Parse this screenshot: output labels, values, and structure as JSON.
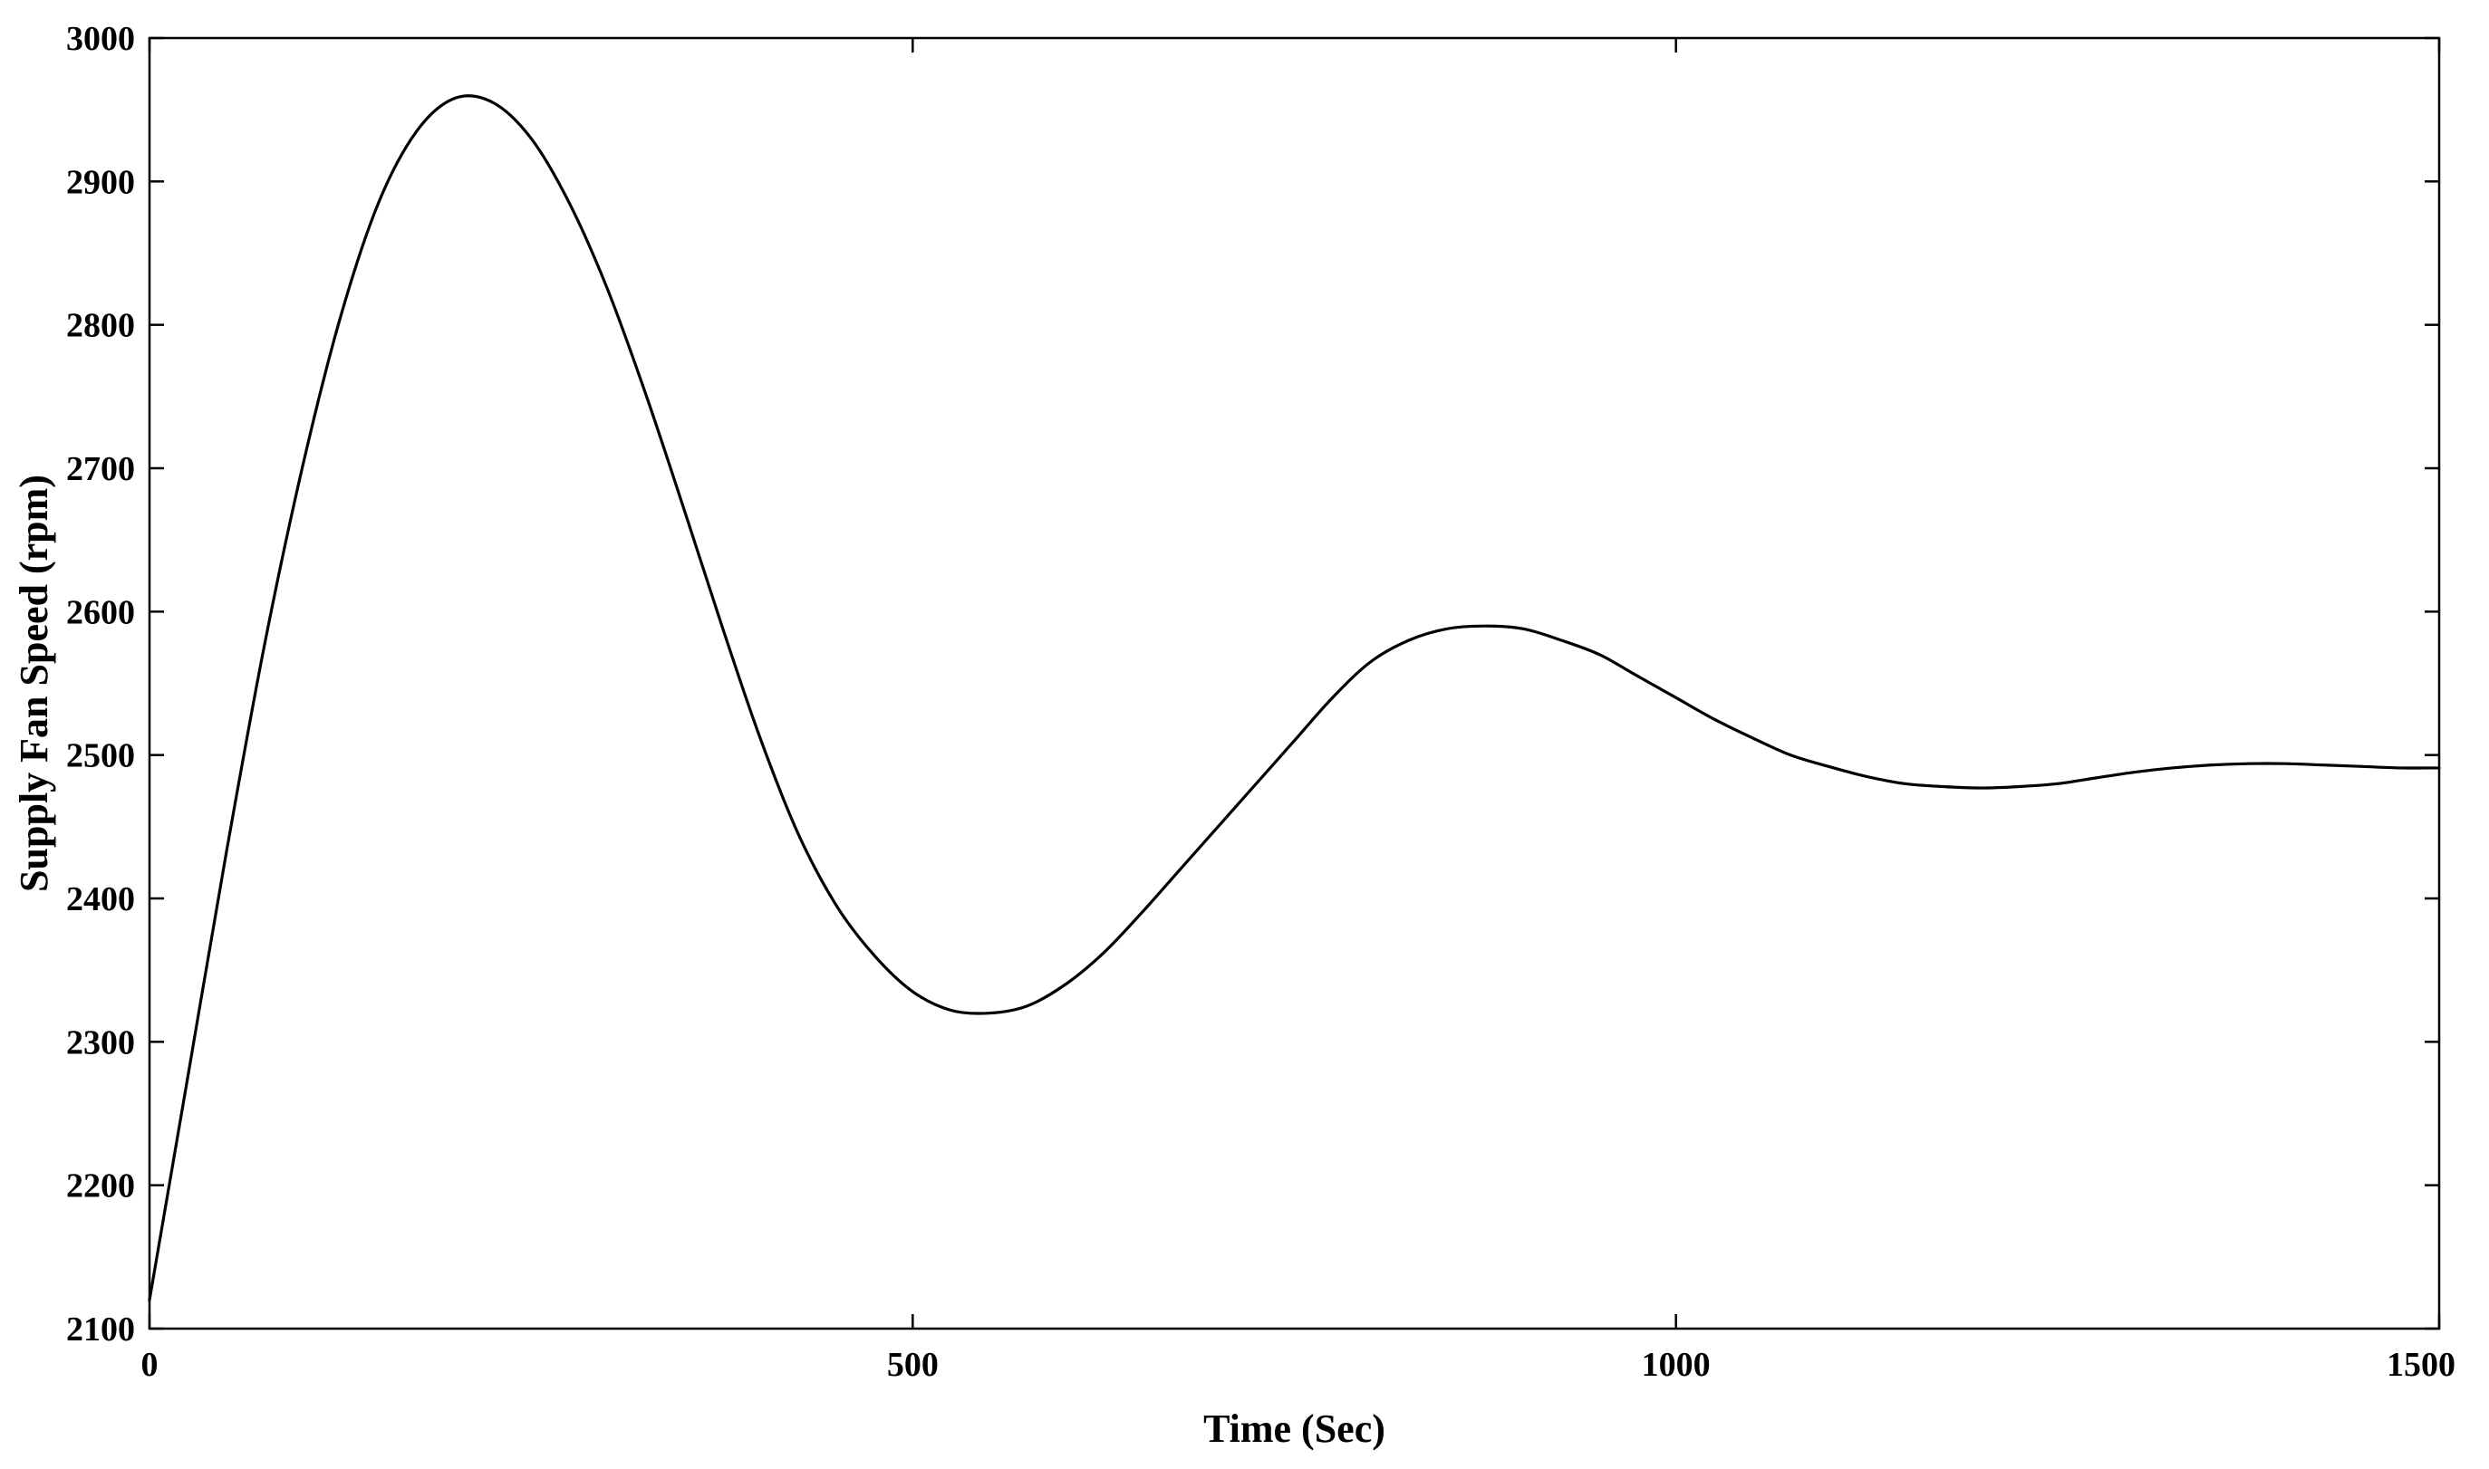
{
  "chart_data": {
    "type": "line",
    "title": "",
    "xlabel": "Time (Sec)",
    "ylabel": "Supply Fan Speed (rpm)",
    "xlim": [
      0,
      1500
    ],
    "ylim": [
      2100,
      3000
    ],
    "xticks": [
      0,
      500,
      1000,
      1500
    ],
    "yticks": [
      2100,
      2200,
      2300,
      2400,
      2500,
      2600,
      2700,
      2800,
      2900,
      3000
    ],
    "xtick_labels": [
      "0",
      "500",
      "1000",
      "1500"
    ],
    "ytick_labels": [
      "2100",
      "2200",
      "2300",
      "2400",
      "2500",
      "2600",
      "2700",
      "2800",
      "2900",
      "3000"
    ],
    "grid": false,
    "line_color": "#000000",
    "series": [
      {
        "x": [
          0,
          25,
          50,
          75,
          100,
          125,
          150,
          175,
          200,
          225,
          250,
          275,
          300,
          325,
          350,
          375,
          400,
          425,
          450,
          475,
          500,
          525,
          550,
          575,
          600,
          625,
          650,
          675,
          700,
          725,
          750,
          775,
          800,
          825,
          850,
          875,
          900,
          925,
          950,
          975,
          1000,
          1025,
          1050,
          1075,
          1100,
          1125,
          1150,
          1175,
          1200,
          1225,
          1250,
          1275,
          1300,
          1325,
          1350,
          1375,
          1400,
          1425,
          1450,
          1475,
          1500
        ],
        "y": [
          2120,
          2275,
          2430,
          2575,
          2700,
          2805,
          2885,
          2935,
          2958,
          2955,
          2930,
          2885,
          2825,
          2752,
          2672,
          2590,
          2512,
          2445,
          2395,
          2360,
          2335,
          2322,
          2320,
          2325,
          2340,
          2362,
          2390,
          2420,
          2450,
          2480,
          2510,
          2540,
          2565,
          2580,
          2588,
          2590,
          2588,
          2580,
          2570,
          2555,
          2540,
          2525,
          2512,
          2500,
          2492,
          2485,
          2480,
          2478,
          2477,
          2478,
          2480,
          2484,
          2488,
          2491,
          2493,
          2494,
          2494,
          2493,
          2492,
          2491,
          2491
        ]
      }
    ]
  }
}
